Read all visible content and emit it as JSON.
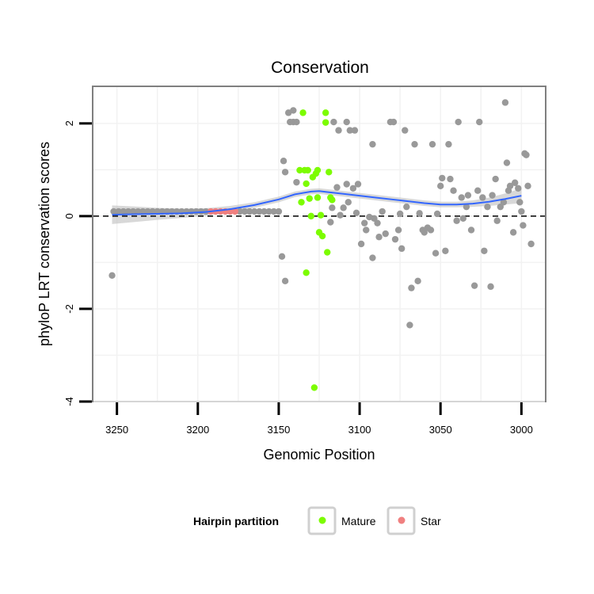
{
  "chart_data": {
    "type": "scatter",
    "title": "Conservation",
    "xlabel": "Genomic Position",
    "ylabel": "phyloP LRT conservation scores",
    "xlim": [
      3265,
      2985
    ],
    "ylim": [
      -4.0,
      2.8
    ],
    "x_reversed": true,
    "x_ticks": [
      3250,
      3200,
      3150,
      3100,
      3050,
      3000
    ],
    "y_ticks": [
      -4,
      -2,
      0,
      2
    ],
    "reference_line": {
      "y": 0,
      "style": "dashed",
      "color": "#000000"
    },
    "legend": {
      "title": "Hairpin partition",
      "entries": [
        {
          "label": "Mature",
          "color": "#7CFC00"
        },
        {
          "label": "Star",
          "color": "#F08080"
        }
      ]
    },
    "colors": {
      "other": "#999999",
      "mature": "#7CFC00",
      "star": "#F08080",
      "smooth": "#3366FF",
      "band": "#BEBEBE",
      "panel_border": "#7F7F7F",
      "grid": "#F2F2F2"
    },
    "series": [
      {
        "name": "Other",
        "points": [
          [
            3253,
            -1.28
          ],
          [
            3252,
            0.1
          ],
          [
            3249,
            0.1
          ],
          [
            3246,
            0.1
          ],
          [
            3243,
            0.1
          ],
          [
            3240,
            0.1
          ],
          [
            3237,
            0.1
          ],
          [
            3234,
            0.1
          ],
          [
            3231,
            0.1
          ],
          [
            3228,
            0.1
          ],
          [
            3225,
            0.1
          ],
          [
            3222,
            0.1
          ],
          [
            3219,
            0.1
          ],
          [
            3216,
            0.1
          ],
          [
            3213,
            0.1
          ],
          [
            3210,
            0.1
          ],
          [
            3207,
            0.1
          ],
          [
            3204,
            0.1
          ],
          [
            3201,
            0.1
          ],
          [
            3198,
            0.1
          ],
          [
            3195,
            0.1
          ],
          [
            3174,
            0.1
          ],
          [
            3171,
            0.1
          ],
          [
            3168,
            0.1
          ],
          [
            3165,
            0.1
          ],
          [
            3162,
            0.1
          ],
          [
            3159,
            0.1
          ],
          [
            3156,
            0.1
          ],
          [
            3153,
            0.1
          ],
          [
            3150,
            0.1
          ],
          [
            3147,
            1.19
          ],
          [
            3146,
            0.95
          ],
          [
            3144,
            2.23
          ],
          [
            3141,
            2.28
          ],
          [
            3143,
            2.03
          ],
          [
            3141,
            2.03
          ],
          [
            3139,
            2.03
          ],
          [
            3139,
            0.73
          ],
          [
            3148,
            -0.87
          ],
          [
            3146,
            -1.4
          ],
          [
            3118,
            -0.13
          ],
          [
            3117,
            0.18
          ],
          [
            3114,
            0.62
          ],
          [
            3113,
            1.85
          ],
          [
            3116,
            2.03
          ],
          [
            3108,
            2.03
          ],
          [
            3106,
            1.85
          ],
          [
            3103,
            1.85
          ],
          [
            3101,
            0.69
          ],
          [
            3112,
            0.02
          ],
          [
            3110,
            0.18
          ],
          [
            3107,
            0.3
          ],
          [
            3104,
            0.6
          ],
          [
            3108,
            0.69
          ],
          [
            3102,
            0.07
          ],
          [
            3099,
            -0.6
          ],
          [
            3097,
            -0.15
          ],
          [
            3096,
            -0.3
          ],
          [
            3094,
            -0.02
          ],
          [
            3092,
            1.55
          ],
          [
            3091,
            -0.05
          ],
          [
            3092,
            -0.9
          ],
          [
            3088,
            -0.45
          ],
          [
            3089,
            -0.15
          ],
          [
            3086,
            0.1
          ],
          [
            3084,
            -0.38
          ],
          [
            3081,
            2.03
          ],
          [
            3079,
            2.03
          ],
          [
            3078,
            -0.5
          ],
          [
            3076,
            -0.3
          ],
          [
            3075,
            0.05
          ],
          [
            3074,
            -0.7
          ],
          [
            3072,
            1.85
          ],
          [
            3071,
            0.2
          ],
          [
            3069,
            -2.35
          ],
          [
            3068,
            -1.55
          ],
          [
            3066,
            1.55
          ],
          [
            3064,
            -1.4
          ],
          [
            3063,
            0.06
          ],
          [
            3061,
            -0.3
          ],
          [
            3060,
            -0.35
          ],
          [
            3058,
            -0.25
          ],
          [
            3056,
            -0.3
          ],
          [
            3055,
            1.55
          ],
          [
            3053,
            -0.8
          ],
          [
            3052,
            0.05
          ],
          [
            3050,
            0.65
          ],
          [
            3049,
            0.82
          ],
          [
            3047,
            -0.75
          ],
          [
            3045,
            1.55
          ],
          [
            3044,
            0.8
          ],
          [
            3042,
            0.55
          ],
          [
            3040,
            -0.1
          ],
          [
            3039,
            2.03
          ],
          [
            3037,
            0.4
          ],
          [
            3036,
            -0.05
          ],
          [
            3034,
            0.2
          ],
          [
            3033,
            0.45
          ],
          [
            3031,
            -0.3
          ],
          [
            3029,
            -1.5
          ],
          [
            3027,
            0.55
          ],
          [
            3026,
            2.03
          ],
          [
            3024,
            0.4
          ],
          [
            3023,
            -0.75
          ],
          [
            3021,
            0.2
          ],
          [
            3019,
            -1.52
          ],
          [
            3018,
            0.45
          ],
          [
            3016,
            0.8
          ],
          [
            3015,
            -0.1
          ],
          [
            3013,
            0.2
          ],
          [
            3011,
            0.3
          ],
          [
            3010,
            2.45
          ],
          [
            3009,
            1.15
          ],
          [
            3008,
            0.55
          ],
          [
            3007,
            0.65
          ],
          [
            3005,
            -0.35
          ],
          [
            3004,
            0.72
          ],
          [
            3002,
            0.6
          ],
          [
            3001,
            0.3
          ],
          [
            3000,
            0.1
          ],
          [
            2999,
            -0.2
          ],
          [
            2998,
            1.35
          ],
          [
            2997,
            1.32
          ],
          [
            2996,
            0.65
          ],
          [
            2994,
            -0.6
          ]
        ]
      },
      {
        "name": "Mature",
        "points": [
          [
            3135,
            2.23
          ],
          [
            3134,
            0.99
          ],
          [
            3132,
            0.99
          ],
          [
            3131,
            0.38
          ],
          [
            3133,
            0.7
          ],
          [
            3133,
            -1.22
          ],
          [
            3130,
            0.0
          ],
          [
            3128,
            -3.7
          ],
          [
            3129,
            0.84
          ],
          [
            3127,
            0.92
          ],
          [
            3126,
            0.99
          ],
          [
            3126,
            0.4
          ],
          [
            3125,
            -0.35
          ],
          [
            3124,
            0.02
          ],
          [
            3123,
            -0.43
          ],
          [
            3121,
            2.23
          ],
          [
            3121,
            2.02
          ],
          [
            3120,
            -0.78
          ],
          [
            3119,
            0.95
          ],
          [
            3118,
            0.4
          ],
          [
            3117,
            0.35
          ],
          [
            3136,
            0.3
          ],
          [
            3137,
            0.99
          ]
        ]
      },
      {
        "name": "Star",
        "points": [
          [
            3192,
            0.1
          ],
          [
            3189,
            0.1
          ],
          [
            3186,
            0.1
          ],
          [
            3183,
            0.1
          ],
          [
            3180,
            0.1
          ],
          [
            3177,
            0.1
          ]
        ]
      }
    ],
    "smooth": {
      "method": "loess",
      "x": [
        3253,
        3240,
        3225,
        3210,
        3195,
        3180,
        3165,
        3150,
        3140,
        3130,
        3125,
        3120,
        3110,
        3100,
        3090,
        3080,
        3070,
        3060,
        3050,
        3040,
        3030,
        3020,
        3010,
        3000
      ],
      "y": [
        0.03,
        0.04,
        0.05,
        0.06,
        0.09,
        0.15,
        0.24,
        0.36,
        0.47,
        0.53,
        0.54,
        0.52,
        0.48,
        0.44,
        0.4,
        0.36,
        0.32,
        0.28,
        0.25,
        0.25,
        0.27,
        0.31,
        0.37,
        0.44
      ],
      "se": [
        0.2,
        0.17,
        0.13,
        0.1,
        0.08,
        0.07,
        0.06,
        0.06,
        0.06,
        0.06,
        0.06,
        0.06,
        0.06,
        0.06,
        0.06,
        0.06,
        0.06,
        0.06,
        0.06,
        0.06,
        0.07,
        0.09,
        0.12,
        0.16
      ]
    }
  }
}
